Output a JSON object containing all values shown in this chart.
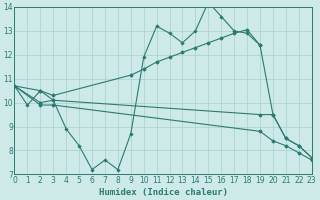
{
  "line1_x": [
    0,
    1,
    2,
    3,
    4,
    5,
    6,
    7,
    8,
    9,
    10,
    11,
    12,
    13,
    14,
    15,
    16,
    17,
    18,
    19,
    20,
    21,
    22,
    23
  ],
  "line1_y": [
    10.7,
    9.9,
    10.5,
    10.1,
    8.9,
    8.2,
    7.2,
    7.6,
    7.2,
    8.7,
    11.9,
    13.2,
    12.9,
    12.5,
    13.0,
    14.2,
    13.6,
    13.0,
    12.9,
    12.4,
    9.5,
    8.5,
    8.2,
    7.7
  ],
  "line2_x": [
    0,
    2,
    3,
    9,
    10,
    11,
    12,
    13,
    14,
    15,
    16,
    17,
    18,
    19
  ],
  "line2_y": [
    10.7,
    10.5,
    10.3,
    11.15,
    11.4,
    11.7,
    11.9,
    12.1,
    12.3,
    12.5,
    12.7,
    12.9,
    13.05,
    12.4
  ],
  "line3_x": [
    0,
    2,
    3,
    19,
    20,
    21,
    22,
    23
  ],
  "line3_y": [
    10.7,
    10.0,
    10.1,
    9.5,
    9.5,
    8.5,
    8.2,
    7.7
  ],
  "line4_x": [
    0,
    2,
    3,
    19,
    20,
    21,
    22,
    23
  ],
  "line4_y": [
    10.7,
    9.9,
    9.9,
    8.8,
    8.4,
    8.2,
    7.9,
    7.6
  ],
  "color": "#2b7a72",
  "bg_color": "#ceeae8",
  "grid_color": "#aed4d0",
  "xlabel": "Humidex (Indice chaleur)",
  "ylim": [
    7,
    14
  ],
  "xlim": [
    0,
    23
  ],
  "yticks": [
    7,
    8,
    9,
    10,
    11,
    12,
    13,
    14
  ],
  "xticks": [
    0,
    1,
    2,
    3,
    4,
    5,
    6,
    7,
    8,
    9,
    10,
    11,
    12,
    13,
    14,
    15,
    16,
    17,
    18,
    19,
    20,
    21,
    22,
    23
  ]
}
